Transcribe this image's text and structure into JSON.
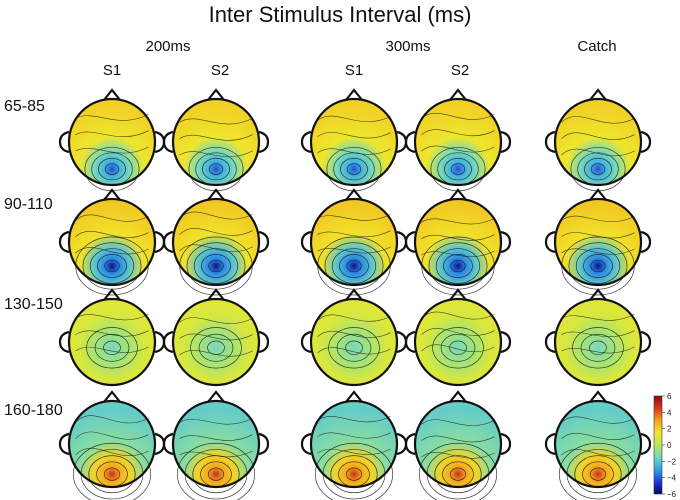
{
  "title": "Inter Stimulus Interval (ms)",
  "groups": [
    {
      "label": "200ms"
    },
    {
      "label": "300ms"
    }
  ],
  "columns": [
    {
      "label": "S1"
    },
    {
      "label": "S2"
    },
    {
      "label": "S1"
    },
    {
      "label": "S2"
    },
    {
      "label": "Catch"
    }
  ],
  "rows": [
    {
      "label": "65-85"
    },
    {
      "label": "90-110"
    },
    {
      "label": "130-150"
    },
    {
      "label": "160-180"
    }
  ],
  "colorbar": {
    "ticks": [
      "6",
      "4",
      "2",
      "0",
      "−2",
      "−4",
      "−6"
    ],
    "max": 6,
    "min": -6
  },
  "colormap": [
    "#08006e",
    "#1f3bd6",
    "#2fa3ea",
    "#73d8c0",
    "#b8e85a",
    "#f1e62a",
    "#f4a11c",
    "#d9381e",
    "#8c0a0a"
  ]
}
